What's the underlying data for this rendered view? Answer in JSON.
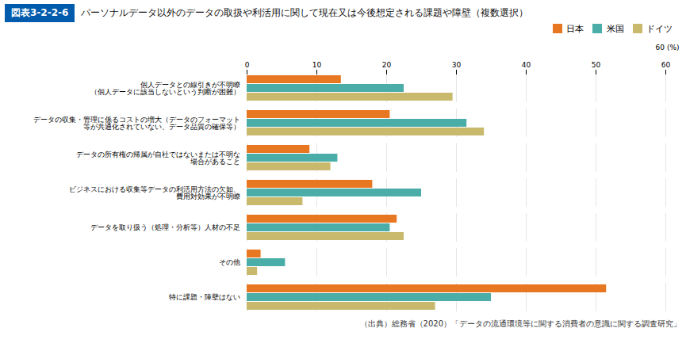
{
  "chart_data": {
    "type": "bar",
    "orientation": "horizontal",
    "title": "パーソナルデータ以外のデータの取扱や利活用に関して現在又は今後想定される課題や障壁（複数選択）",
    "annotations": [
      "図表3-2-2-6",
      "（出典）総務省（2020）「データの流通環境等に関する消費者の意識に関する調査研究」"
    ],
    "xlabel": "60 (%)",
    "categories": [
      "個人データとの線引きが不明瞭\n（個人データに該当しないという判断が困難）",
      "データの収集・管理に係るコストの増大（データのフォーマット\n等が共通化されていない、データ品質の確保等）",
      "データの所有権の帰属が自社ではないまたは不明な\n場合があること",
      "ビジネスにおける収集等データの利活用方法の欠如、\n費用対効果が不明瞭",
      "データを取り扱う（処理・分析等）人材の不足",
      "その他",
      "特に課題・障壁はない"
    ],
    "series": [
      {
        "name": "日本",
        "color": "#E87722",
        "values": [
          13.5,
          20.5,
          9.0,
          18.0,
          21.5,
          2.0,
          51.5
        ]
      },
      {
        "name": "米国",
        "color": "#4AADA8",
        "values": [
          22.5,
          31.5,
          13.0,
          25.0,
          20.5,
          5.5,
          35.0
        ]
      },
      {
        "name": "ドイツ",
        "color": "#C8B96C",
        "values": [
          29.5,
          34.0,
          12.0,
          8.0,
          22.5,
          1.5,
          27.0
        ]
      }
    ],
    "xlim": [
      0,
      60
    ],
    "xticks": [
      0,
      10,
      20,
      30,
      40,
      50,
      60
    ],
    "grid": true,
    "legend": "upper right"
  }
}
